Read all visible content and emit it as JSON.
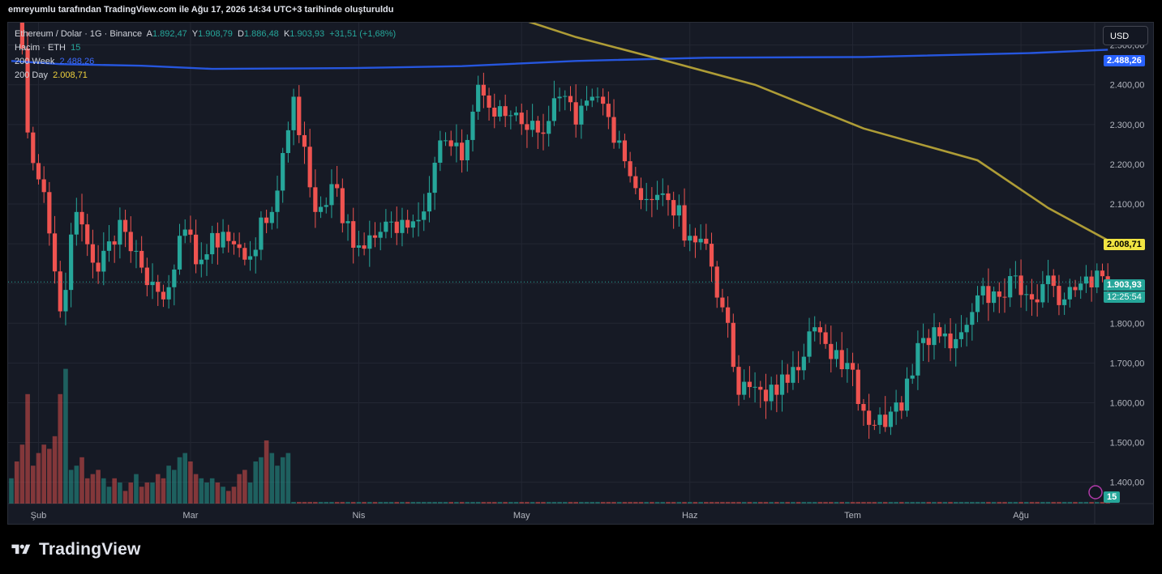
{
  "header": {
    "caption": "emreyumlu tarafından TradingView.com ile Ağu 17, 2026 14:34 UTC+3 tarihinde oluşturuldu"
  },
  "legend": {
    "symbol": "Ethereum / Dolar · 1G · Binance",
    "open_label": "A",
    "open": "1.892,47",
    "high_label": "Y",
    "high": "1.908,79",
    "low_label": "D",
    "low": "1.886,48",
    "close_label": "K",
    "close": "1.903,93",
    "change": "+31,51 (+1,68%)",
    "volume_label": "Hacim · ETH",
    "volume_value": "15",
    "ma200w_label": "200 Week",
    "ma200w_value": "2.488,26",
    "ma200d_label": "200 Day",
    "ma200d_value": "2.008,71"
  },
  "toolbar": {
    "currency": "USD"
  },
  "price_tags": {
    "ma200w": "2.488,26",
    "ma200d": "2.008,71",
    "last_price": "1.903,93",
    "countdown": "12:25:54",
    "volume": "15"
  },
  "brand": {
    "name": "TradingView"
  },
  "colors": {
    "up": "#26a69a",
    "down": "#ef5350",
    "ma200w": "#2962ff",
    "ma200d": "#c9b43a",
    "background": "#161a25",
    "grid": "#232733"
  },
  "chart_data": {
    "type": "candlestick",
    "symbol": "ETH/USD",
    "interval": "1D",
    "x_tick_labels": [
      "Şub",
      "Mar",
      "Nis",
      "May",
      "Haz",
      "Tem",
      "Ağu"
    ],
    "y_tick_labels": [
      "1.400,00",
      "1.500,00",
      "1.600,00",
      "1.700,00",
      "1.800,00",
      "1.900,00",
      "2.000,00",
      "2.100,00",
      "2.200,00",
      "2.300,00",
      "2.400,00",
      "2.500,00"
    ],
    "ylim": [
      1330,
      2540
    ],
    "grid": true,
    "ohlc_close_anchors": [
      {
        "date": "2026-01-27",
        "close": 2900
      },
      {
        "date": "2026-01-30",
        "close": 2280
      },
      {
        "date": "2026-02-02",
        "close": 2130
      },
      {
        "date": "2026-02-05",
        "close": 1830
      },
      {
        "date": "2026-02-08",
        "close": 2080
      },
      {
        "date": "2026-02-12",
        "close": 1930
      },
      {
        "date": "2026-02-16",
        "close": 2060
      },
      {
        "date": "2026-02-20",
        "close": 1940
      },
      {
        "date": "2026-02-24",
        "close": 1860
      },
      {
        "date": "2026-02-27",
        "close": 2020
      },
      {
        "date": "2026-03-03",
        "close": 1960
      },
      {
        "date": "2026-03-07",
        "close": 2030
      },
      {
        "date": "2026-03-11",
        "close": 1960
      },
      {
        "date": "2026-03-16",
        "close": 2080
      },
      {
        "date": "2026-03-20",
        "close": 2370
      },
      {
        "date": "2026-03-24",
        "close": 2080
      },
      {
        "date": "2026-03-27",
        "close": 2150
      },
      {
        "date": "2026-03-31",
        "close": 1990
      },
      {
        "date": "2026-04-05",
        "close": 2030
      },
      {
        "date": "2026-04-09",
        "close": 2060
      },
      {
        "date": "2026-04-12",
        "close": 2060
      },
      {
        "date": "2026-04-16",
        "close": 2260
      },
      {
        "date": "2026-04-20",
        "close": 2210
      },
      {
        "date": "2026-04-23",
        "close": 2400
      },
      {
        "date": "2026-04-26",
        "close": 2320
      },
      {
        "date": "2026-04-30",
        "close": 2330
      },
      {
        "date": "2026-05-04",
        "close": 2280
      },
      {
        "date": "2026-05-08",
        "close": 2370
      },
      {
        "date": "2026-05-11",
        "close": 2300
      },
      {
        "date": "2026-05-15",
        "close": 2370
      },
      {
        "date": "2026-05-19",
        "close": 2260
      },
      {
        "date": "2026-05-22",
        "close": 2140
      },
      {
        "date": "2026-05-25",
        "close": 2110
      },
      {
        "date": "2026-05-28",
        "close": 2110
      },
      {
        "date": "2026-06-01",
        "close": 2020
      },
      {
        "date": "2026-06-04",
        "close": 2000
      },
      {
        "date": "2026-06-07",
        "close": 1840
      },
      {
        "date": "2026-06-10",
        "close": 1620
      },
      {
        "date": "2026-06-13",
        "close": 1640
      },
      {
        "date": "2026-06-17",
        "close": 1620
      },
      {
        "date": "2026-06-20",
        "close": 1690
      },
      {
        "date": "2026-06-24",
        "close": 1790
      },
      {
        "date": "2026-06-27",
        "close": 1710
      },
      {
        "date": "2026-06-30",
        "close": 1700
      },
      {
        "date": "2026-07-03",
        "close": 1580
      },
      {
        "date": "2026-07-06",
        "close": 1570
      },
      {
        "date": "2026-07-10",
        "close": 1580
      },
      {
        "date": "2026-07-13",
        "close": 1750
      },
      {
        "date": "2026-07-16",
        "close": 1790
      },
      {
        "date": "2026-07-20",
        "close": 1760
      },
      {
        "date": "2026-07-24",
        "close": 1870
      },
      {
        "date": "2026-07-27",
        "close": 1880
      },
      {
        "date": "2026-07-31",
        "close": 1920
      },
      {
        "date": "2026-08-03",
        "close": 1860
      },
      {
        "date": "2026-08-06",
        "close": 1920
      },
      {
        "date": "2026-08-09",
        "close": 1860
      },
      {
        "date": "2026-08-12",
        "close": 1900
      },
      {
        "date": "2026-08-17",
        "close": 1903.93
      }
    ],
    "volume_early_phase": [
      6,
      10,
      14,
      26,
      9,
      12,
      14,
      13,
      16,
      26,
      32,
      8,
      9,
      11,
      6,
      7,
      8,
      6,
      4,
      6,
      5,
      3,
      5,
      7,
      4,
      5,
      5,
      7,
      6,
      9,
      8,
      11,
      12,
      10,
      7,
      6,
      5,
      6,
      5,
      4,
      3,
      4,
      7,
      8,
      5,
      10,
      11,
      15,
      12,
      9,
      11,
      12
    ],
    "series": [
      {
        "name": "200 Week",
        "points": [
          {
            "date": "2026-01-27",
            "value": 2460
          },
          {
            "date": "2026-02-05",
            "value": 2452
          },
          {
            "date": "2026-02-20",
            "value": 2448
          },
          {
            "date": "2026-03-05",
            "value": 2440
          },
          {
            "date": "2026-03-31",
            "value": 2442
          },
          {
            "date": "2026-04-20",
            "value": 2447
          },
          {
            "date": "2026-05-11",
            "value": 2460
          },
          {
            "date": "2026-06-04",
            "value": 2468
          },
          {
            "date": "2026-07-03",
            "value": 2470
          },
          {
            "date": "2026-08-03",
            "value": 2480
          },
          {
            "date": "2026-08-17",
            "value": 2488.26
          }
        ]
      },
      {
        "name": "200 Day",
        "points": [
          {
            "date": "2026-04-23",
            "value": 2600
          },
          {
            "date": "2026-05-11",
            "value": 2520
          },
          {
            "date": "2026-05-25",
            "value": 2470
          },
          {
            "date": "2026-06-13",
            "value": 2400
          },
          {
            "date": "2026-07-03",
            "value": 2290
          },
          {
            "date": "2026-07-24",
            "value": 2210
          },
          {
            "date": "2026-08-06",
            "value": 2090
          },
          {
            "date": "2026-08-17",
            "value": 2008.71
          }
        ]
      }
    ],
    "last_price": 1903.93
  }
}
